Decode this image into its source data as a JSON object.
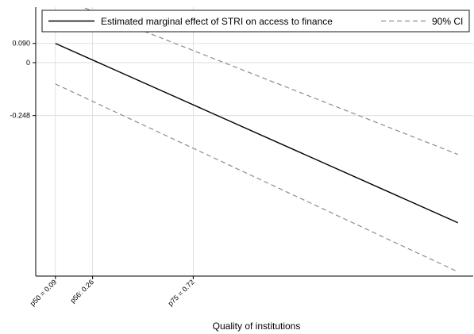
{
  "chart_data": {
    "type": "line",
    "title": "",
    "xlabel": "Quality of institutions",
    "ylabel": "",
    "xlim": [
      0,
      2.0
    ],
    "ylim": [
      -1.0,
      0.26
    ],
    "x_tick_labels": [
      {
        "x": 0.09,
        "label": "p50 = 0.09"
      },
      {
        "x": 0.26,
        "label": "p56: 0.26"
      },
      {
        "x": 0.72,
        "label": "p75 = 0.72"
      }
    ],
    "y_tick_labels": [
      {
        "y": 0.09,
        "label": "0.090"
      },
      {
        "y": 0.0,
        "label": "0"
      },
      {
        "y": -0.248,
        "label": "-0.248"
      }
    ],
    "grid": true,
    "legend": {
      "placement": "top",
      "entries": [
        "Estimated marginal effect of STRI on access to finance",
        "90% CI"
      ]
    },
    "series": [
      {
        "name": "Estimated marginal effect of STRI on access to finance",
        "style": "solid",
        "color": "#000000",
        "x": [
          0.09,
          1.93
        ],
        "y": [
          0.09,
          -0.75
        ]
      },
      {
        "name": "90% CI",
        "style": "dashed",
        "color": "#8c8c8c",
        "x": [
          0.09,
          1.93
        ],
        "y": [
          -0.1,
          -0.98
        ]
      },
      {
        "name": "90% CI",
        "style": "dashed",
        "color": "#8c8c8c",
        "x": [
          0.09,
          1.93
        ],
        "y": [
          0.31,
          -0.43
        ]
      }
    ]
  }
}
